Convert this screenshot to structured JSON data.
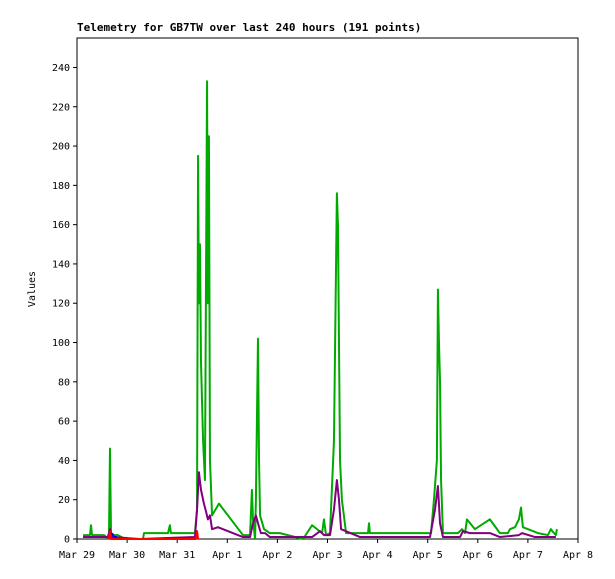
{
  "chart_data": {
    "type": "line",
    "title": "Telemetry for GB7TW over last 240 hours (191 points)",
    "y_label": "Values",
    "xlim": [
      0,
      240
    ],
    "ylim": [
      0,
      255
    ],
    "xticks": [
      {
        "value": 0,
        "label": "Mar 29"
      },
      {
        "value": 24,
        "label": "Mar 30"
      },
      {
        "value": 48,
        "label": "Mar 31"
      },
      {
        "value": 72,
        "label": "Apr 1"
      },
      {
        "value": 96,
        "label": "Apr 2"
      },
      {
        "value": 120,
        "label": "Apr 3"
      },
      {
        "value": 144,
        "label": "Apr 4"
      },
      {
        "value": 168,
        "label": "Apr 5"
      },
      {
        "value": 192,
        "label": "Apr 6"
      },
      {
        "value": 216,
        "label": "Apr 7"
      },
      {
        "value": 240,
        "label": "Apr 8"
      }
    ],
    "yticks": [
      0,
      20,
      40,
      60,
      80,
      100,
      120,
      140,
      160,
      180,
      200,
      220,
      240
    ],
    "series": [
      {
        "color": "#00aa00",
        "x": [
          2.9,
          6.2,
          6.7,
          7.2,
          12.9,
          15.3,
          15.8,
          16.3,
          19.6,
          23.0,
          31.6,
          32.1,
          43.6,
          44.5,
          45.0,
          55.1,
          56.5,
          57.5,
          58.0,
          58.4,
          58.9,
          59.4,
          60.4,
          61.3,
          62.3,
          62.7,
          63.2,
          63.7,
          64.7,
          68.0,
          79.5,
          82.9,
          83.8,
          84.3,
          85.3,
          85.7,
          86.7,
          87.2,
          87.7,
          89.6,
          92.4,
          97.2,
          108.3,
          112.6,
          117.4,
          118.3,
          119.3,
          121.2,
          123.1,
          124.5,
          125.0,
          125.5,
          126.0,
          126.9,
          128.9,
          133.2,
          137.0,
          138.4,
          139.4,
          139.9,
          140.3,
          158.1,
          163.3,
          169.6,
          171.0,
          172.4,
          172.9,
          173.4,
          173.9,
          174.4,
          175.3,
          182.5,
          184.4,
          185.9,
          186.8,
          190.6,
          197.8,
          202.6,
          206.4,
          207.4,
          209.8,
          211.7,
          212.7,
          213.6,
          220.8,
          225.6,
          227.0,
          228.5,
          229.4,
          229.9
        ],
        "values": [
          2,
          2,
          7,
          2,
          2,
          0,
          46,
          2,
          2,
          0,
          0,
          3,
          3,
          7,
          3,
          3,
          3,
          15,
          195,
          120,
          150,
          90,
          50,
          30,
          233,
          120,
          205,
          40,
          12,
          18,
          2,
          2,
          25,
          10,
          0,
          20,
          102,
          40,
          12,
          5,
          3,
          3,
          0,
          7,
          3,
          10,
          2,
          3,
          50,
          176,
          160,
          100,
          40,
          20,
          3,
          3,
          3,
          3,
          3,
          8,
          3,
          3,
          3,
          3,
          20,
          40,
          127,
          100,
          80,
          30,
          3,
          3,
          5,
          3,
          10,
          5,
          10,
          3,
          3,
          5,
          6,
          10,
          16,
          6,
          3,
          2,
          5,
          3,
          2,
          5
        ]
      },
      {
        "color": "#800080",
        "x": [
          2.9,
          12.9,
          14.8,
          15.8,
          16.8,
          30.2,
          56.5,
          57.5,
          58.4,
          59.4,
          60.8,
          61.8,
          62.7,
          63.7,
          64.7,
          67.5,
          79.5,
          82.9,
          84.3,
          85.7,
          86.7,
          88.1,
          90.1,
          92.4,
          112.6,
          116.4,
          118.3,
          121.2,
          123.1,
          124.5,
          125.5,
          126.5,
          135.6,
          169.1,
          171.5,
          172.9,
          173.9,
          175.3,
          183.5,
          184.9,
          188.2,
          197.8,
          202.6,
          211.7,
          213.2,
          219.4,
          229.4
        ],
        "values": [
          1,
          1,
          1,
          5,
          1,
          0,
          1,
          15,
          34,
          25,
          18,
          14,
          10,
          12,
          5,
          6,
          1,
          1,
          8,
          12,
          8,
          3,
          3,
          1,
          1,
          4,
          2,
          2,
          15,
          30,
          20,
          5,
          1,
          1,
          15,
          27,
          8,
          1,
          1,
          4,
          3,
          3,
          1,
          2,
          3,
          1,
          1
        ]
      },
      {
        "color": "#ff0000",
        "x": [
          15.3,
          15.8,
          16.3,
          56.9,
          57.5,
          58.0
        ],
        "values": [
          0,
          4,
          0,
          0,
          4,
          0
        ]
      },
      {
        "color": "#0000ff",
        "x": [
          16.8,
          17.7,
          19.2
        ],
        "values": [
          3,
          1,
          1
        ]
      }
    ]
  }
}
